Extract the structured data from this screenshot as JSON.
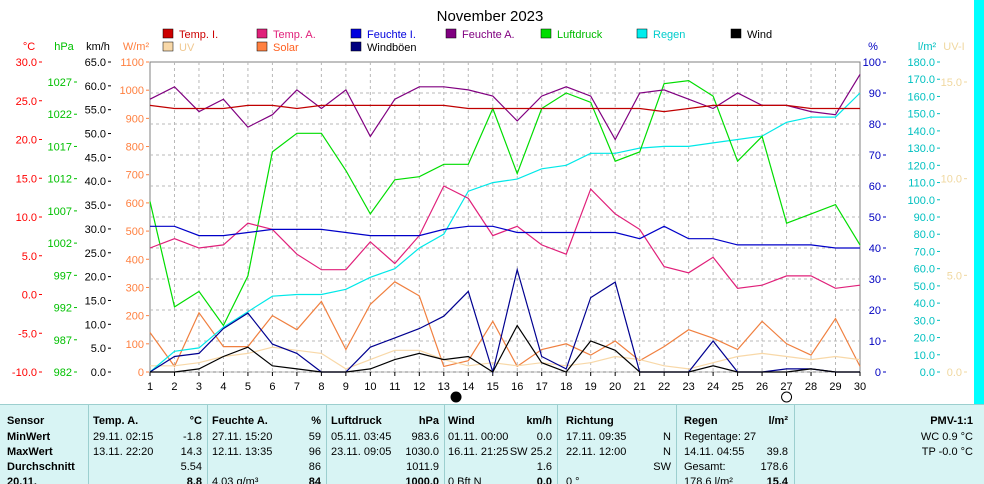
{
  "chart_data": {
    "type": "line",
    "title": "November 2023",
    "x": [
      1,
      2,
      3,
      4,
      5,
      6,
      7,
      8,
      9,
      10,
      11,
      12,
      13,
      14,
      15,
      16,
      17,
      18,
      19,
      20,
      21,
      22,
      23,
      24,
      25,
      26,
      27,
      28,
      29,
      30
    ],
    "axes": {
      "temp": {
        "label": "°C",
        "color": "#ff0000",
        "ticks": [
          "30.0",
          "25.0",
          "20.0",
          "15.0",
          "10.0",
          "5.0",
          "0.0",
          "-5.0",
          "-10.0"
        ],
        "min": -10,
        "max": 30
      },
      "hpa": {
        "label": "hPa",
        "color": "#00c000",
        "ticks": [
          "1027",
          "1022",
          "1017",
          "1012",
          "1007",
          "1002",
          "997",
          "992",
          "987",
          "982"
        ],
        "min": 982,
        "max": 1030
      },
      "kmh": {
        "label": "km/h",
        "color": "#000000",
        "ticks": [
          "65.0",
          "60.0",
          "55.0",
          "50.0",
          "45.0",
          "40.0",
          "35.0",
          "30.0",
          "25.0",
          "20.0",
          "15.0",
          "10.0",
          "5.0",
          "0.0"
        ],
        "min": 0,
        "max": 65
      },
      "wm2": {
        "label": "W/m²",
        "color": "#ff8040",
        "ticks": [
          "1100",
          "1000",
          "900",
          "800",
          "700",
          "600",
          "500",
          "400",
          "300",
          "200",
          "100",
          "0"
        ],
        "min": 0,
        "max": 1100
      },
      "pct": {
        "label": "%",
        "color": "#0000c0",
        "ticks": [
          "100",
          "90",
          "80",
          "70",
          "60",
          "50",
          "40",
          "30",
          "20",
          "10",
          "0"
        ],
        "min": 0,
        "max": 100
      },
      "lm2": {
        "label": "l/m²",
        "color": "#00c0c0",
        "ticks": [
          "180.0",
          "170.0",
          "160.0",
          "150.0",
          "140.0",
          "130.0",
          "120.0",
          "110.0",
          "100.0",
          "90.0",
          "80.0",
          "70.0",
          "60.0",
          "50.0",
          "40.0",
          "30.0",
          "20.0",
          "10.0",
          "0.0"
        ],
        "min": 0,
        "max": 180
      },
      "uv": {
        "label": "UV-I",
        "color": "#f0d8a0",
        "ticks": [
          "15.0",
          "10.0",
          "5.0",
          "0.0"
        ],
        "min": 0,
        "max": 18
      }
    },
    "legend": [
      {
        "name": "Temp. I.",
        "color": "#cc0000",
        "text_color": "#cc0000"
      },
      {
        "name": "Temp. A.",
        "color": "#e0207a",
        "text_color": "#e0207a"
      },
      {
        "name": "Feuchte I.",
        "color": "#0000dd",
        "text_color": "#0000dd"
      },
      {
        "name": "Feuchte A.",
        "color": "#800080",
        "text_color": "#800080"
      },
      {
        "name": "Luftdruck",
        "color": "#00dd00",
        "text_color": "#00bb00"
      },
      {
        "name": "Regen",
        "color": "#00eeee",
        "text_color": "#00cccc"
      },
      {
        "name": "Wind",
        "color": "#000000",
        "text_color": "#000000"
      },
      {
        "name": "UV",
        "color": "#f8d8a8",
        "text_color": "#f0c890"
      },
      {
        "name": "Solar",
        "color": "#ff8040",
        "text_color": "#ff6020"
      },
      {
        "name": "Windböen",
        "color": "#000080",
        "text_color": "#000000"
      }
    ],
    "series": [
      {
        "name": "Temp. I.",
        "axis": "pct",
        "color": "#c00000",
        "values": [
          86,
          85,
          85,
          85,
          86,
          86,
          85,
          86,
          86,
          86,
          86,
          86,
          86,
          85,
          85,
          85,
          85,
          85,
          85,
          85,
          85,
          84,
          85,
          86,
          86,
          86,
          86,
          85,
          85,
          85
        ]
      },
      {
        "name": "Feuchte A.",
        "axis": "pct",
        "color": "#800080",
        "values": [
          88,
          92,
          84,
          88,
          79,
          83,
          91,
          85,
          91,
          76,
          88,
          92,
          92,
          91,
          89,
          81,
          89,
          92,
          89,
          75,
          90,
          91,
          88,
          85,
          90,
          86,
          86,
          84,
          83,
          96
        ]
      },
      {
        "name": "Feuchte I.",
        "axis": "pct",
        "color": "#0000c8",
        "values": [
          47,
          47,
          44,
          44,
          45,
          46,
          46,
          46,
          45,
          44,
          44,
          44,
          46,
          47,
          47,
          45,
          45,
          45,
          45,
          45,
          43,
          47,
          43,
          43,
          41,
          41,
          41,
          41,
          40,
          40
        ]
      },
      {
        "name": "Luftdruck",
        "axis": "pct",
        "color": "#00dd00",
        "values": [
          55,
          21,
          26,
          15,
          31,
          71,
          77,
          77,
          65,
          51,
          62,
          63,
          67,
          67,
          85,
          64,
          85,
          90,
          87,
          68,
          71,
          93,
          94,
          89,
          68,
          76,
          48,
          51,
          54,
          41
        ]
      },
      {
        "name": "Regen",
        "axis": "lm2",
        "color": "#00e8e8",
        "values": [
          0,
          12,
          14,
          26,
          35,
          44,
          45,
          45,
          48,
          55,
          60,
          72,
          80,
          105,
          110,
          112,
          118,
          120,
          127,
          127,
          130,
          131,
          131,
          133,
          135,
          137,
          145,
          148,
          148,
          162
        ]
      },
      {
        "name": "Temp. A.",
        "axis": "pct",
        "color": "#e0207a",
        "values": [
          40,
          43,
          40,
          41,
          48,
          46,
          38,
          33,
          33,
          42,
          35,
          44,
          60,
          56,
          44,
          47,
          41,
          38,
          59,
          51,
          46,
          34,
          32,
          37,
          27,
          28,
          31,
          31,
          27,
          28
        ]
      },
      {
        "name": "Solar",
        "axis": "wm2",
        "color": "#f08040",
        "values": [
          140,
          20,
          210,
          90,
          90,
          200,
          150,
          250,
          80,
          240,
          320,
          270,
          20,
          40,
          180,
          20,
          80,
          100,
          60,
          110,
          40,
          90,
          150,
          120,
          80,
          180,
          100,
          60,
          190,
          20
        ]
      },
      {
        "name": "UV",
        "axis": "pct",
        "color": "#f8d8a8",
        "values": [
          2,
          2,
          3,
          5,
          6,
          8,
          7,
          6,
          1,
          4,
          7,
          7,
          4,
          2,
          3,
          2,
          3,
          2,
          3,
          5,
          4,
          2,
          1,
          3,
          5,
          6,
          5,
          4,
          5,
          4
        ]
      },
      {
        "name": "Windböen",
        "axis": "pct",
        "color": "#000090",
        "values": [
          0,
          5,
          6,
          14,
          19,
          9,
          6,
          0,
          0,
          8,
          11,
          14,
          18,
          26,
          0,
          33,
          5,
          1,
          24,
          29,
          0,
          0,
          0,
          10,
          0,
          0,
          1,
          1,
          0,
          0
        ]
      },
      {
        "name": "Wind",
        "axis": "pct",
        "color": "#000000",
        "values": [
          0,
          0,
          1,
          5,
          8,
          2,
          1,
          0,
          0,
          1,
          4,
          6,
          4,
          5,
          0,
          15,
          3,
          0,
          10,
          7,
          0,
          0,
          0,
          2,
          0,
          0,
          0,
          1,
          0,
          0
        ]
      }
    ],
    "moon_markers": [
      {
        "day": 13.5,
        "phase": "new"
      },
      {
        "day": 27,
        "phase": "full"
      }
    ]
  },
  "summary": {
    "sensor": {
      "header": "Sensor",
      "rows": [
        "MinWert",
        "MaxWert",
        "Durchschnitt",
        "20.11."
      ]
    },
    "temp": {
      "header": "Temp. A.",
      "unit": "°C",
      "rows": [
        [
          "29.11.  02:15",
          "-1.8"
        ],
        [
          "13.11.  22:20",
          "14.3"
        ],
        [
          "",
          "5.54"
        ],
        [
          "",
          "8.8"
        ]
      ]
    },
    "feuchte": {
      "header": "Feuchte A.",
      "unit": "%",
      "rows": [
        [
          "27.11.  15:20",
          "59"
        ],
        [
          "12.11.  13:35",
          "96"
        ],
        [
          "",
          "86"
        ],
        [
          "4.03 g/m³",
          "84"
        ]
      ]
    },
    "luftdruck": {
      "header": "Luftdruck",
      "unit": "hPa",
      "rows": [
        [
          "05.11.  03:45",
          "983.6"
        ],
        [
          "23.11.  09:05",
          "1030.0"
        ],
        [
          "",
          "1011.9"
        ],
        [
          "",
          "1000.0"
        ]
      ]
    },
    "wind": {
      "header": "Wind",
      "unit": "km/h",
      "rows": [
        [
          "01.11.  00:00",
          "0.0"
        ],
        [
          "16.11.  21:25",
          "SW 25.2"
        ],
        [
          "",
          "1.6"
        ],
        [
          "0 Bft  N",
          "0.0"
        ]
      ]
    },
    "richtung": {
      "header": "Richtung",
      "rows": [
        [
          "17.11.  09:35",
          "N"
        ],
        [
          "22.11.  12:00",
          "N"
        ],
        [
          "",
          "SW"
        ],
        [
          "0 °",
          ""
        ]
      ]
    },
    "regen": {
      "header": "Regen",
      "unit": "l/m²",
      "rows": [
        [
          "Regentage: 27",
          ""
        ],
        [
          "14.11.  04:55",
          "39.8"
        ],
        [
          "Gesamt:",
          "178.6"
        ],
        [
          "178.6 l/m²",
          "15.4"
        ]
      ]
    },
    "pmv": {
      "header": "PMV-1:1",
      "rows": [
        "WC 0.9 °C",
        "TP -0.0 °C"
      ]
    }
  }
}
